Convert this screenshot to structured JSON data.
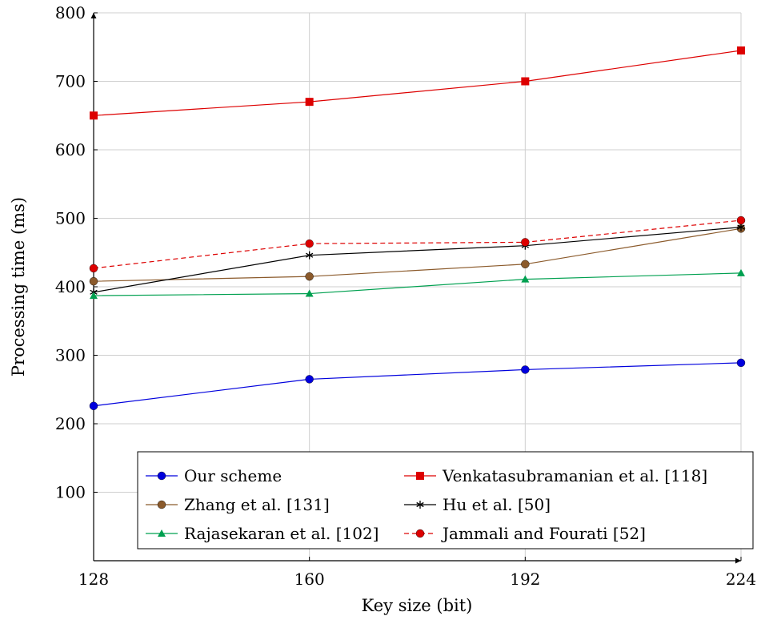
{
  "chart_data": {
    "type": "line",
    "xlabel": "Key size (bit)",
    "ylabel": "Processing time (ms)",
    "x": [
      128,
      160,
      192,
      224
    ],
    "xlim": [
      128,
      224
    ],
    "ylim": [
      0,
      800
    ],
    "yticks": [
      100,
      200,
      300,
      400,
      500,
      600,
      700,
      800
    ],
    "grid": true,
    "legend_position": "bottom-right",
    "series": [
      {
        "name": "Our scheme",
        "values": [
          226,
          265,
          279,
          289
        ],
        "color": "#0000dd",
        "marker": "circle",
        "dash": "solid"
      },
      {
        "name": "Venkatasubramanian et al. [118]",
        "values": [
          650,
          670,
          700,
          745
        ],
        "color": "#dd0000",
        "marker": "square",
        "dash": "solid"
      },
      {
        "name": "Zhang et al. [131]",
        "values": [
          408,
          415,
          433,
          485
        ],
        "color": "#8b5a2b",
        "marker": "circle",
        "dash": "solid"
      },
      {
        "name": "Hu et al. [50]",
        "values": [
          392,
          446,
          460,
          487
        ],
        "color": "#000000",
        "marker": "star",
        "dash": "solid"
      },
      {
        "name": "Rajasekaran et al. [102]",
        "values": [
          387,
          390,
          411,
          420
        ],
        "color": "#00a050",
        "marker": "triangle",
        "dash": "solid"
      },
      {
        "name": "Jammali and Fourati [52]",
        "values": [
          427,
          463,
          465,
          497
        ],
        "color": "#dd0000",
        "marker": "circle",
        "dash": "dashed"
      }
    ]
  }
}
